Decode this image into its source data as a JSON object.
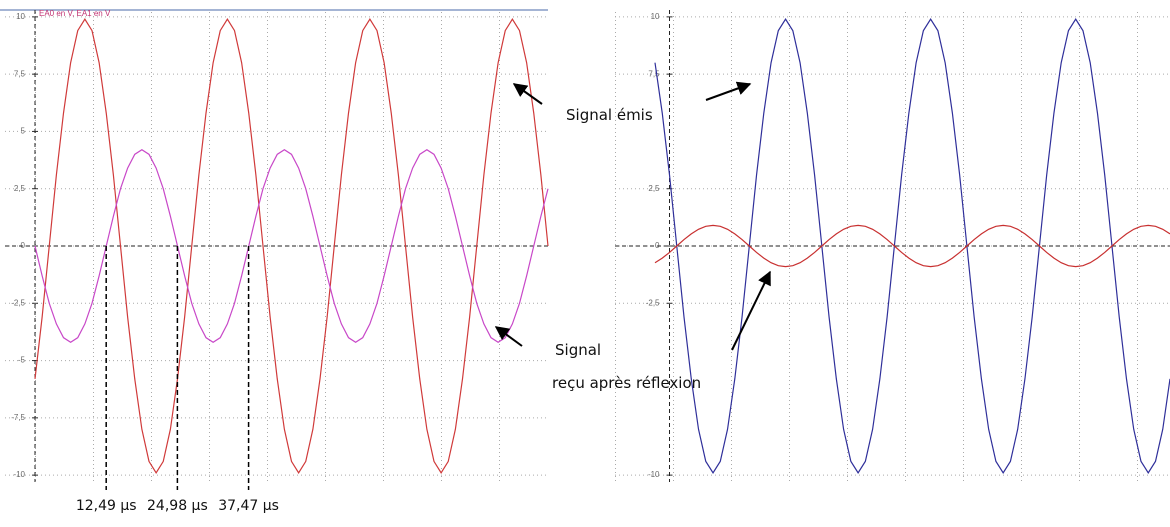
{
  "chart_data": [
    {
      "type": "line",
      "legend_text": "EA0 en V, EA1 en V",
      "x": [
        0,
        1.25,
        2.5,
        3.75,
        5,
        6.25,
        7.5,
        8.75,
        10,
        11.25,
        12.5,
        13.75,
        15,
        16.25,
        17.5,
        18.75,
        20,
        21.25,
        22.5,
        23.75,
        25,
        26.25,
        27.5,
        28.75,
        30,
        31.25,
        32.5,
        33.75,
        35,
        36.25,
        37.5,
        38.75,
        40,
        41.25,
        42.5,
        43.75,
        45,
        46.25,
        47.5,
        48.75,
        50,
        51.25,
        52.5,
        53.75,
        55,
        56.25,
        57.5,
        58.75,
        60,
        61.25,
        62.5,
        63.75,
        65,
        66.25,
        67.5,
        68.75,
        70,
        71.25,
        72.5,
        73.75,
        75,
        76.25,
        77.5,
        78.75,
        80,
        81.25,
        82.5,
        83.75,
        85,
        86.25,
        87.5,
        88.75,
        90
      ],
      "series": [
        {
          "color": "#d03a3a",
          "values": [
            -5.8,
            -3.1,
            0,
            3.1,
            5.8,
            8,
            9.4,
            9.9,
            9.4,
            8,
            5.8,
            3.1,
            0,
            -3.1,
            -5.8,
            -8,
            -9.4,
            -9.9,
            -9.4,
            -8,
            -5.8,
            -3.1,
            0,
            3.1,
            5.8,
            8,
            9.4,
            9.9,
            9.4,
            8,
            5.8,
            3.1,
            0,
            -3.1,
            -5.8,
            -8,
            -9.4,
            -9.9,
            -9.4,
            -8,
            -5.8,
            -3.1,
            0,
            3.1,
            5.8,
            8,
            9.4,
            9.9,
            9.4,
            8,
            5.8,
            3.1,
            0,
            -3.1,
            -5.8,
            -8,
            -9.4,
            -9.9,
            -9.4,
            -8,
            -5.8,
            -3.1,
            0,
            3.1,
            5.8,
            8,
            9.4,
            9.9,
            9.4,
            8,
            5.8,
            3.1,
            0
          ]
        },
        {
          "color": "#c848c8",
          "values": [
            0,
            -1.3,
            -2.5,
            -3.4,
            -4,
            -4.2,
            -4,
            -3.4,
            -2.5,
            -1.3,
            0,
            1.3,
            2.5,
            3.4,
            4,
            4.2,
            4,
            3.4,
            2.5,
            1.3,
            0,
            -1.3,
            -2.5,
            -3.4,
            -4,
            -4.2,
            -4,
            -3.4,
            -2.5,
            -1.3,
            0,
            1.3,
            2.5,
            3.4,
            4,
            4.2,
            4,
            3.4,
            2.5,
            1.3,
            0,
            -1.3,
            -2.5,
            -3.4,
            -4,
            -4.2,
            -4,
            -3.4,
            -2.5,
            -1.3,
            0,
            1.3,
            2.5,
            3.4,
            4,
            4.2,
            4,
            3.4,
            2.5,
            1.3,
            0,
            -1.3,
            -2.5,
            -3.4,
            -4,
            -4.2,
            -4,
            -3.4,
            -2.5,
            -1.3,
            0,
            1.3,
            2.5
          ]
        }
      ],
      "xlim": [
        0,
        90
      ],
      "ylim": [
        -10.3,
        10.3
      ],
      "yticks": [
        10,
        {
          "value": 7.5,
          "label": "7,5"
        },
        5,
        {
          "value": 2.5,
          "label": "2,5"
        },
        0,
        {
          "value": -2.5,
          "label": "-2,5"
        },
        -5,
        {
          "value": -7.5,
          "label": "-7,5"
        },
        -10
      ],
      "grid": true,
      "time_marks": [
        {
          "value": 12.49,
          "label": "12,49 µs"
        },
        {
          "value": 24.98,
          "label": "24,98 µs"
        },
        {
          "value": 37.47,
          "label": "37,47 µs"
        }
      ],
      "annotations": [
        "Signal émis",
        "Signal",
        "reçu après réflexion"
      ]
    },
    {
      "type": "line",
      "x": [
        -2.5,
        -1.25,
        0,
        1.25,
        2.5,
        3.75,
        5,
        6.25,
        7.5,
        8.75,
        10,
        11.25,
        12.5,
        13.75,
        15,
        16.25,
        17.5,
        18.75,
        20,
        21.25,
        22.5,
        23.75,
        25,
        26.25,
        27.5,
        28.75,
        30,
        31.25,
        32.5,
        33.75,
        35,
        36.25,
        37.5,
        38.75,
        40,
        41.25,
        42.5,
        43.75,
        45,
        46.25,
        47.5,
        48.75,
        50,
        51.25,
        52.5,
        53.75,
        55,
        56.25,
        57.5,
        58.75,
        60,
        61.25,
        62.5,
        63.75,
        65,
        66.25,
        67.5,
        68.75,
        70,
        71.25,
        72.5,
        73.75,
        75,
        76.25,
        77.5,
        78.75,
        80,
        81.25,
        82.5,
        83.75,
        85,
        86.25
      ],
      "series": [
        {
          "color": "#2f2f9a",
          "values": [
            8,
            5.8,
            3.1,
            0,
            -3.1,
            -5.8,
            -8,
            -9.4,
            -9.9,
            -9.4,
            -8,
            -5.8,
            -3.1,
            0,
            3.1,
            5.8,
            8,
            9.4,
            9.9,
            9.4,
            8,
            5.8,
            3.1,
            0,
            -3.1,
            -5.8,
            -8,
            -9.4,
            -9.9,
            -9.4,
            -8,
            -5.8,
            -3.1,
            0,
            3.1,
            5.8,
            8,
            9.4,
            9.9,
            9.4,
            8,
            5.8,
            3.1,
            0,
            -3.1,
            -5.8,
            -8,
            -9.4,
            -9.9,
            -9.4,
            -8,
            -5.8,
            -3.1,
            0,
            3.1,
            5.8,
            8,
            9.4,
            9.9,
            9.4,
            8,
            5.8,
            3.1,
            0,
            -3.1,
            -5.8,
            -8,
            -9.4,
            -9.9,
            -9.4,
            -8,
            -5.8
          ]
        },
        {
          "color": "#c83030",
          "values": [
            -0.73,
            -0.53,
            -0.28,
            0,
            0.28,
            0.53,
            0.73,
            0.86,
            0.9,
            0.86,
            0.73,
            0.53,
            0.28,
            0,
            -0.28,
            -0.53,
            -0.73,
            -0.86,
            -0.9,
            -0.86,
            -0.73,
            -0.53,
            -0.28,
            0,
            0.28,
            0.53,
            0.73,
            0.86,
            0.9,
            0.86,
            0.73,
            0.53,
            0.28,
            0,
            -0.28,
            -0.53,
            -0.73,
            -0.86,
            -0.9,
            -0.86,
            -0.73,
            -0.53,
            -0.28,
            0,
            0.28,
            0.53,
            0.73,
            0.86,
            0.9,
            0.86,
            0.73,
            0.53,
            0.28,
            0,
            -0.28,
            -0.53,
            -0.73,
            -0.86,
            -0.9,
            -0.86,
            -0.73,
            -0.53,
            -0.28,
            0,
            0.28,
            0.53,
            0.73,
            0.86,
            0.9,
            0.86,
            0.73,
            0.53
          ]
        }
      ],
      "xlim": [
        -2.5,
        86.25
      ],
      "ylim": [
        -10.3,
        10.3
      ],
      "yticks": [
        10,
        {
          "value": 7.5,
          "label": "7,5"
        },
        {
          "value": 2.5,
          "label": "2,5"
        },
        0,
        {
          "value": -2.5,
          "label": "-2,5"
        },
        -10
      ],
      "grid": true
    }
  ]
}
